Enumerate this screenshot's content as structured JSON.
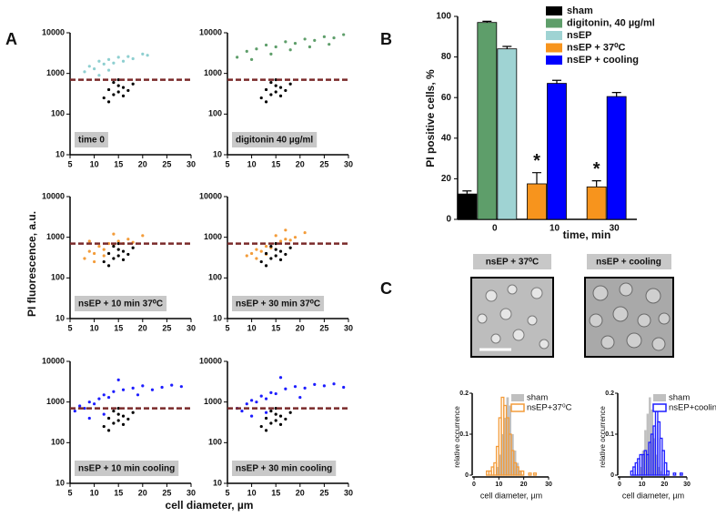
{
  "panel_labels": [
    "A",
    "B",
    "C"
  ],
  "chart_data": [
    {
      "type": "scatter",
      "label": "time 0",
      "xlim": [
        5,
        30
      ],
      "xticks": [
        5,
        10,
        15,
        20,
        25,
        30
      ],
      "ylim": [
        10,
        10000
      ],
      "yticks": [
        10,
        100,
        1000,
        10000
      ],
      "log_y": true,
      "hline": 700,
      "hline_color": "#7a2a2a",
      "series": [
        {
          "color": "#8ecfd0",
          "x": [
            8,
            9,
            10,
            11,
            12,
            13,
            14,
            15,
            16,
            17,
            18,
            20,
            21,
            11,
            13
          ],
          "y": [
            1100,
            1500,
            1300,
            2000,
            1700,
            2200,
            1800,
            2500,
            2000,
            2600,
            2300,
            3000,
            2800,
            900,
            1200
          ]
        },
        {
          "color": "#000000",
          "x": [
            12,
            13,
            14,
            14,
            15,
            15,
            16,
            16,
            17,
            18,
            13,
            15
          ],
          "y": [
            250,
            400,
            300,
            600,
            350,
            500,
            280,
            450,
            380,
            550,
            200,
            700
          ]
        }
      ]
    },
    {
      "type": "scatter",
      "label": "digitonin 40 µg/ml",
      "xlim": [
        5,
        30
      ],
      "xticks": [
        5,
        10,
        15,
        20,
        25,
        30
      ],
      "ylim": [
        10,
        10000
      ],
      "yticks": [
        10,
        100,
        1000,
        10000
      ],
      "log_y": true,
      "hline": 700,
      "hline_color": "#7a2a2a",
      "series": [
        {
          "color": "#5e9e6a",
          "x": [
            7,
            9,
            11,
            13,
            15,
            17,
            19,
            21,
            23,
            25,
            27,
            29,
            10,
            14,
            18,
            22,
            26
          ],
          "y": [
            2500,
            3500,
            4000,
            5000,
            4500,
            6000,
            5500,
            7000,
            6500,
            8000,
            7500,
            9000,
            2200,
            3000,
            3800,
            4500,
            5200
          ]
        },
        {
          "color": "#000000",
          "x": [
            12,
            13,
            14,
            14,
            15,
            15,
            16,
            16,
            17,
            18,
            13,
            15
          ],
          "y": [
            250,
            400,
            300,
            600,
            350,
            500,
            280,
            450,
            380,
            550,
            200,
            700
          ]
        }
      ]
    },
    {
      "type": "scatter",
      "label": "nsEP + 10 min 37⁰C",
      "ylabel": "PI fluorescence, a.u.",
      "xlim": [
        5,
        30
      ],
      "xticks": [
        5,
        10,
        15,
        20,
        25,
        30
      ],
      "ylim": [
        10,
        10000
      ],
      "yticks": [
        10,
        100,
        1000,
        10000
      ],
      "log_y": true,
      "hline": 700,
      "hline_color": "#7a2a2a",
      "series": [
        {
          "color": "#f39c3a",
          "x": [
            8,
            9,
            10,
            11,
            12,
            13,
            14,
            15,
            16,
            17,
            18,
            20,
            10,
            12,
            14,
            9
          ],
          "y": [
            300,
            450,
            400,
            600,
            500,
            700,
            650,
            800,
            700,
            900,
            750,
            1100,
            250,
            350,
            1200,
            800
          ]
        },
        {
          "color": "#000000",
          "x": [
            12,
            13,
            14,
            14,
            15,
            15,
            16,
            16,
            17,
            18,
            13,
            15
          ],
          "y": [
            250,
            400,
            300,
            600,
            350,
            500,
            280,
            450,
            380,
            550,
            200,
            700
          ]
        }
      ]
    },
    {
      "type": "scatter",
      "label": "nsEP + 30 min 37⁰C",
      "xlim": [
        5,
        30
      ],
      "xticks": [
        5,
        10,
        15,
        20,
        25,
        30
      ],
      "ylim": [
        10,
        10000
      ],
      "yticks": [
        10,
        100,
        1000,
        10000
      ],
      "log_y": true,
      "hline": 700,
      "hline_color": "#7a2a2a",
      "series": [
        {
          "color": "#f39c3a",
          "x": [
            9,
            10,
            11,
            12,
            13,
            14,
            15,
            16,
            17,
            18,
            19,
            21,
            11,
            13,
            15,
            17
          ],
          "y": [
            350,
            400,
            500,
            450,
            600,
            550,
            700,
            800,
            900,
            850,
            1000,
            1300,
            300,
            380,
            1100,
            1500
          ]
        },
        {
          "color": "#000000",
          "x": [
            12,
            13,
            14,
            14,
            15,
            15,
            16,
            16,
            17,
            18,
            13,
            15
          ],
          "y": [
            250,
            400,
            300,
            600,
            350,
            500,
            280,
            450,
            380,
            550,
            200,
            700
          ]
        }
      ]
    },
    {
      "type": "scatter",
      "label": "nsEP + 10 min cooling",
      "xlabel": "cell diameter, µm",
      "xlim": [
        5,
        30
      ],
      "xticks": [
        5,
        10,
        15,
        20,
        25,
        30
      ],
      "ylim": [
        10,
        10000
      ],
      "yticks": [
        10,
        100,
        1000,
        10000
      ],
      "log_y": true,
      "hline": 700,
      "hline_color": "#7a2a2a",
      "series": [
        {
          "color": "#1d1dff",
          "x": [
            6,
            7,
            8,
            9,
            10,
            11,
            12,
            13,
            14,
            16,
            18,
            20,
            22,
            24,
            26,
            28,
            9,
            12,
            15,
            19
          ],
          "y": [
            600,
            800,
            700,
            1000,
            900,
            1200,
            1500,
            1300,
            1800,
            2000,
            2200,
            2500,
            2000,
            2300,
            2600,
            2400,
            400,
            500,
            3500,
            1500
          ]
        },
        {
          "color": "#000000",
          "x": [
            12,
            13,
            14,
            14,
            15,
            15,
            16,
            16,
            17,
            18,
            13,
            15
          ],
          "y": [
            250,
            400,
            300,
            600,
            350,
            500,
            280,
            450,
            380,
            550,
            200,
            700
          ]
        }
      ]
    },
    {
      "type": "scatter",
      "label": "nsEP + 30 min cooling",
      "xlim": [
        5,
        30
      ],
      "xticks": [
        5,
        10,
        15,
        20,
        25,
        30
      ],
      "ylim": [
        10,
        10000
      ],
      "yticks": [
        10,
        100,
        1000,
        10000
      ],
      "log_y": true,
      "hline": 700,
      "hline_color": "#7a2a2a",
      "series": [
        {
          "color": "#1d1dff",
          "x": [
            7,
            8,
            9,
            10,
            11,
            12,
            13,
            14,
            15,
            17,
            19,
            21,
            23,
            25,
            27,
            29,
            10,
            13,
            16,
            20
          ],
          "y": [
            700,
            600,
            900,
            1100,
            1000,
            1400,
            1200,
            1700,
            1600,
            2100,
            2400,
            2200,
            2700,
            2500,
            2800,
            2300,
            450,
            550,
            4000,
            1300
          ]
        },
        {
          "color": "#000000",
          "x": [
            12,
            13,
            14,
            14,
            15,
            15,
            16,
            16,
            17,
            18,
            13,
            15
          ],
          "y": [
            250,
            400,
            300,
            600,
            350,
            500,
            280,
            450,
            380,
            550,
            200,
            700
          ]
        }
      ]
    },
    {
      "type": "bar",
      "ylabel": "PI positive cells, %",
      "xlabel": "time, min",
      "categories": [
        "0",
        "10",
        "30"
      ],
      "ylim": [
        0,
        100
      ],
      "yticks": [
        0,
        20,
        40,
        60,
        80,
        100
      ],
      "series": [
        {
          "name": "sham",
          "color": "#000000",
          "values": [
            12.5,
            null,
            null
          ],
          "errors": [
            1.5,
            null,
            null
          ]
        },
        {
          "name": "digitonin, 40 µg/ml",
          "color": "#5e9e6a",
          "values": [
            97,
            null,
            null
          ],
          "errors": [
            0.6,
            null,
            null
          ]
        },
        {
          "name": "nsEP",
          "color": "#9fd3d3",
          "values": [
            84,
            null,
            null
          ],
          "errors": [
            1.2,
            null,
            null
          ]
        },
        {
          "name": "nsEP + 37⁰C",
          "color": "#f7941d",
          "values": [
            null,
            17.5,
            16
          ],
          "errors": [
            null,
            5.5,
            3
          ]
        },
        {
          "name": "nsEP + cooling",
          "color": "#0000ff",
          "values": [
            null,
            67,
            60.5
          ],
          "errors": [
            null,
            1.5,
            2
          ]
        }
      ],
      "annotations": [
        {
          "text": "*",
          "series": 3,
          "category": 1
        },
        {
          "text": "*",
          "series": 3,
          "category": 2
        }
      ]
    },
    {
      "type": "histogram",
      "ylabel": "relative occurrence",
      "xlabel": "cell diameter, µm",
      "xlim": [
        0,
        30
      ],
      "xticks": [
        0,
        10,
        20,
        30
      ],
      "ylim": [
        0,
        0.2
      ],
      "yticks": [
        0,
        0.1,
        0.2
      ],
      "bins": [
        0,
        1,
        2,
        3,
        4,
        5,
        6,
        7,
        8,
        9,
        10,
        11,
        12,
        13,
        14,
        15,
        16,
        17,
        18,
        19,
        20,
        21,
        22,
        23,
        24,
        25,
        26,
        27,
        28,
        29,
        30
      ],
      "series": [
        {
          "name": "sham",
          "color": "#c0c0c0",
          "filled": true,
          "counts": [
            0,
            0,
            0,
            0,
            0,
            0,
            0,
            0,
            0,
            0.02,
            0.05,
            0.1,
            0.14,
            0.19,
            0.17,
            0.1,
            0.06,
            0.03,
            0.01,
            0,
            0,
            0,
            0,
            0,
            0,
            0,
            0,
            0,
            0,
            0
          ]
        },
        {
          "name": "nsEP+37⁰C",
          "color": "#f39c3a",
          "filled": false,
          "counts": [
            0,
            0,
            0,
            0,
            0,
            0.01,
            0.01,
            0.02,
            0.03,
            0.07,
            0.14,
            0.19,
            0.17,
            0.14,
            0.1,
            0.06,
            0.03,
            0.02,
            0.01,
            0.01,
            0,
            0,
            0.005,
            0,
            0.005,
            0,
            0,
            0,
            0,
            0
          ]
        }
      ]
    },
    {
      "type": "histogram",
      "ylabel": "relative occurrence",
      "xlabel": "cell diameter, µm",
      "xlim": [
        0,
        30
      ],
      "xticks": [
        0,
        10,
        20,
        30
      ],
      "ylim": [
        0,
        0.2
      ],
      "yticks": [
        0,
        0.1,
        0.2
      ],
      "bins": [
        0,
        1,
        2,
        3,
        4,
        5,
        6,
        7,
        8,
        9,
        10,
        11,
        12,
        13,
        14,
        15,
        16,
        17,
        18,
        19,
        20,
        21,
        22,
        23,
        24,
        25,
        26,
        27,
        28,
        29,
        30
      ],
      "series": [
        {
          "name": "sham",
          "color": "#c0c0c0",
          "filled": true,
          "counts": [
            0,
            0,
            0,
            0,
            0,
            0,
            0,
            0,
            0,
            0.02,
            0.06,
            0.11,
            0.15,
            0.19,
            0.16,
            0.09,
            0.05,
            0.02,
            0.01,
            0,
            0,
            0,
            0,
            0,
            0,
            0,
            0,
            0,
            0,
            0
          ]
        },
        {
          "name": "nsEP+cooling",
          "color": "#1d1dff",
          "filled": false,
          "counts": [
            0,
            0,
            0,
            0,
            0,
            0.01,
            0.02,
            0.03,
            0.04,
            0.05,
            0.05,
            0.06,
            0.05,
            0.08,
            0.1,
            0.12,
            0.16,
            0.13,
            0.09,
            0.06,
            0.03,
            0.01,
            0,
            0,
            0.005,
            0,
            0,
            0.005,
            0,
            0
          ]
        }
      ]
    }
  ],
  "images": [
    {
      "title": "nsEP + 37⁰C"
    },
    {
      "title": "nsEP + cooling"
    }
  ]
}
